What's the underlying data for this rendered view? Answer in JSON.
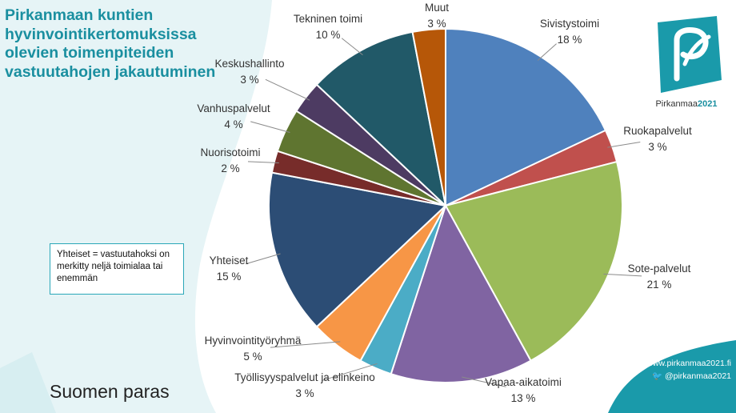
{
  "slide": {
    "title": "Pirkanmaan kuntien hyvinvointikertomuksissa olevien toimenpiteiden vastuutahojen jakautuminen",
    "note": "Yhteiset = vastuutahoksi on merkitty neljä toimialaa tai enemmän",
    "footer": "Suomen paras",
    "logo_text_prefix": "Pirkanmaa",
    "logo_text_year": "2021",
    "website": "www.pirkanmaa2021.fi",
    "twitter": "@pirkanmaa2021",
    "colors": {
      "teal": "#1a8fa0",
      "light_teal_bg": "#e6f4f6"
    }
  },
  "chart_data": {
    "type": "pie",
    "title": "",
    "value_unit": "%",
    "slices": [
      {
        "label": "Sivistystoimi",
        "value": 18,
        "color": "#4f81bd"
      },
      {
        "label": "Ruokapalvelut",
        "value": 3,
        "color": "#c0504d"
      },
      {
        "label": "Sote-palvelut",
        "value": 21,
        "color": "#9bbb59"
      },
      {
        "label": "Vapaa-aikatoimi",
        "value": 13,
        "color": "#8064a2"
      },
      {
        "label": "Työllisyyspalvelut ja elinkeino",
        "value": 3,
        "color": "#4bacc6"
      },
      {
        "label": "Hyvinvointityöryhmä",
        "value": 5,
        "color": "#f79646"
      },
      {
        "label": "Yhteiset",
        "value": 15,
        "color": "#2c4d75"
      },
      {
        "label": "Nuorisotoimi",
        "value": 2,
        "color": "#772c2a"
      },
      {
        "label": "Vanhuspalvelut",
        "value": 4,
        "color": "#5f7530"
      },
      {
        "label": "Keskushallinto",
        "value": 3,
        "color": "#4d3b62"
      },
      {
        "label": "Tekninen toimi",
        "value": 10,
        "color": "#215968"
      },
      {
        "label": "Muut",
        "value": 3,
        "color": "#b65708"
      }
    ]
  }
}
